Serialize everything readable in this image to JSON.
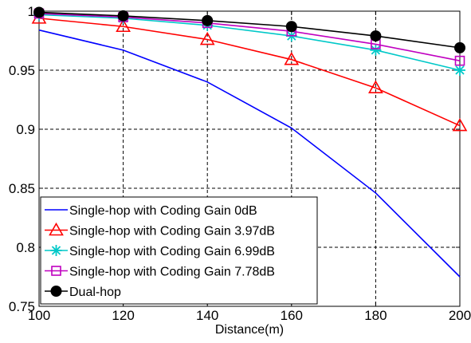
{
  "chart_data": {
    "type": "line",
    "title": "",
    "xlabel": "Distance(m)",
    "ylabel": "",
    "xlim": [
      100,
      200
    ],
    "ylim": [
      0.75,
      1
    ],
    "x_ticks": [
      "100",
      "120",
      "140",
      "160",
      "180",
      "200"
    ],
    "y_ticks": [
      "0.75",
      "0.8",
      "0.85",
      "0.9",
      "0.95",
      "1"
    ],
    "grid": true,
    "legend_position": "bottom-left",
    "x": [
      100,
      120,
      140,
      160,
      180,
      200
    ],
    "series": [
      {
        "name": "Single-hop with Coding Gain 0dB",
        "color": "#0000ff",
        "marker": "none",
        "values": [
          0.984,
          0.967,
          0.94,
          0.901,
          0.846,
          0.775
        ]
      },
      {
        "name": "Single-hop with Coding Gain 3.97dB",
        "color": "#ff0000",
        "marker": "triangle",
        "values": [
          0.994,
          0.987,
          0.976,
          0.959,
          0.935,
          0.903
        ]
      },
      {
        "name": "Single-hop with Coding Gain 6.99dB",
        "color": "#00c8c8",
        "marker": "asterisk",
        "values": [
          0.997,
          0.994,
          0.988,
          0.979,
          0.967,
          0.95
        ]
      },
      {
        "name": "Single-hop with Coding Gain 7.78dB",
        "color": "#c000c0",
        "marker": "square",
        "values": [
          0.998,
          0.995,
          0.99,
          0.983,
          0.972,
          0.958
        ]
      },
      {
        "name": "Dual-hop",
        "color": "#000000",
        "marker": "circle",
        "values": [
          0.999,
          0.996,
          0.992,
          0.987,
          0.979,
          0.969
        ]
      }
    ]
  }
}
